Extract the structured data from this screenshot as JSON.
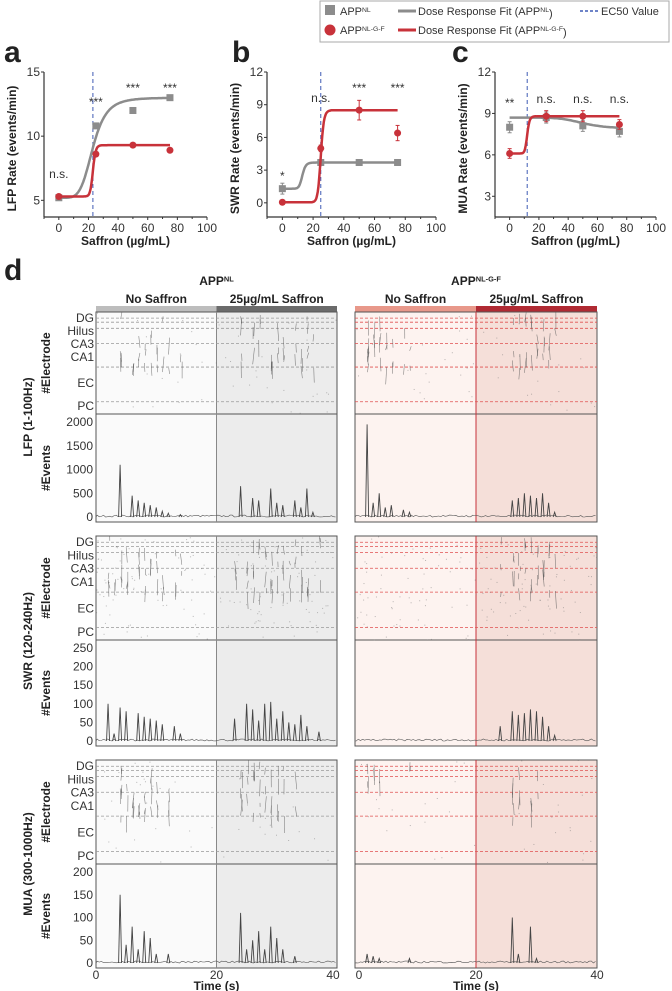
{
  "legend": {
    "items": [
      {
        "label": "APP",
        "sup": "NL",
        "marker": "square",
        "color": "#8c8c8c"
      },
      {
        "label": "APP",
        "sup": "NL-G-F",
        "marker": "circle",
        "color": "#c8323a"
      },
      {
        "label": "Dose Response Fit (APP",
        "sup": "NL",
        "suffix": ")",
        "marker": "line",
        "color": "#8c8c8c"
      },
      {
        "label": "Dose Response Fit (APP",
        "sup": "NL-G-F",
        "suffix": ")",
        "marker": "line",
        "color": "#c8323a"
      },
      {
        "label": "EC50 Value",
        "marker": "dashed",
        "color": "#3f5bb5"
      }
    ]
  },
  "chart_data": [
    {
      "panel": "a",
      "type": "scatter",
      "xlabel": "Saffron (µg/mL)",
      "ylabel": "LFP Rate (events/min)",
      "xlim": [
        -10,
        100
      ],
      "ylim": [
        3.7,
        15
      ],
      "xticks": [
        0,
        20,
        40,
        60,
        80,
        100
      ],
      "yticks": [
        5,
        10,
        15
      ],
      "ec50": 23,
      "series": [
        {
          "name": "APPNL",
          "x": [
            0,
            25,
            50,
            75
          ],
          "y": [
            5.2,
            10.8,
            12.0,
            13.0
          ],
          "fit": {
            "bottom": 5.2,
            "top": 13.0,
            "ec50": 23,
            "hill": 5
          }
        },
        {
          "name": "APPNL-G-F",
          "x": [
            0,
            25,
            50,
            75
          ],
          "y": [
            5.3,
            8.6,
            9.3,
            8.9
          ],
          "fit": {
            "bottom": 5.3,
            "top": 9.3,
            "ec50": 23,
            "hill": 25
          }
        }
      ],
      "significance": [
        {
          "x": 0,
          "label": "n.s."
        },
        {
          "x": 25,
          "label": "***"
        },
        {
          "x": 50,
          "label": "***"
        },
        {
          "x": 75,
          "label": "***"
        }
      ]
    },
    {
      "panel": "b",
      "type": "scatter",
      "xlabel": "Saffron (µg/mL)",
      "ylabel": "SWR Rate (events/min)",
      "xlim": [
        -10,
        100
      ],
      "ylim": [
        -1.3,
        12
      ],
      "xticks": [
        0,
        20,
        40,
        60,
        80,
        100
      ],
      "yticks": [
        0,
        3,
        6,
        9,
        12
      ],
      "ec50": 25,
      "series": [
        {
          "name": "APPNL",
          "x": [
            0,
            25,
            50,
            75
          ],
          "y": [
            1.3,
            3.7,
            3.7,
            3.7
          ],
          "err": [
            0.5,
            0.2,
            0.2,
            0.2
          ],
          "fit": {
            "bottom": 1.3,
            "top": 3.7,
            "ec50": 13,
            "hill": 12
          }
        },
        {
          "name": "APPNL-G-F",
          "x": [
            0,
            25,
            50,
            75
          ],
          "y": [
            0.05,
            5.0,
            8.5,
            6.4
          ],
          "err": [
            0.1,
            0.3,
            0.9,
            0.7
          ],
          "fit": {
            "bottom": 0.05,
            "top": 8.5,
            "ec50": 25,
            "hill": 25
          }
        }
      ],
      "significance": [
        {
          "x": 0,
          "label": "*"
        },
        {
          "x": 25,
          "label": "n.s."
        },
        {
          "x": 50,
          "label": "***"
        },
        {
          "x": 75,
          "label": "***"
        }
      ]
    },
    {
      "panel": "c",
      "type": "scatter",
      "xlabel": "Saffron (µg/mL)",
      "ylabel": "MUA Rate (events/min)",
      "xlim": [
        -10,
        100
      ],
      "ylim": [
        1.5,
        12
      ],
      "xticks": [
        0,
        20,
        40,
        60,
        80,
        100
      ],
      "yticks": [
        3,
        6,
        9,
        12
      ],
      "ec50": 12,
      "series": [
        {
          "name": "APPNL",
          "x": [
            0,
            25,
            50,
            75
          ],
          "y": [
            8.0,
            8.7,
            8.1,
            7.7
          ],
          "err": [
            0.4,
            0.4,
            0.4,
            0.4
          ]
        },
        {
          "name": "APPNL-G-F",
          "x": [
            0,
            25,
            50,
            75
          ],
          "y": [
            6.1,
            8.8,
            8.8,
            8.2
          ],
          "err": [
            0.35,
            0.4,
            0.4,
            0.35
          ],
          "fit": {
            "bottom": 6.1,
            "top": 8.8,
            "ec50": 12,
            "hill": 15
          }
        }
      ],
      "significance": [
        {
          "x": 0,
          "label": "**"
        },
        {
          "x": 25,
          "label": "n.s."
        },
        {
          "x": 50,
          "label": "n.s."
        },
        {
          "x": 75,
          "label": "n.s."
        }
      ]
    },
    {
      "panel": "d",
      "type": "bar",
      "groups": [
        {
          "title": "APP",
          "sup": "NL",
          "color": "#9a9a9a",
          "conditions": [
            "No Saffron",
            "25µg/mL Saffron"
          ],
          "bar_colors": [
            "#bdbdbd",
            "#6b6b6b"
          ],
          "bg_colors": [
            "#fafafa",
            "#ececec"
          ]
        },
        {
          "title": "APP",
          "sup": "NL-G-F",
          "color": "#c8323a",
          "conditions": [
            "No Saffron",
            "25µg/mL Saffron"
          ],
          "bar_colors": [
            "#e8988a",
            "#b02a33"
          ],
          "bg_colors": [
            "#fdf3f0",
            "#f5dfd9"
          ]
        }
      ],
      "regions": [
        "DG",
        "Hilus",
        "CA3",
        "CA1",
        "EC",
        "PC"
      ],
      "xlabel": "Time (s)",
      "xticks": [
        0,
        20,
        40
      ],
      "xlim": [
        0,
        40
      ],
      "raster_label": "#Electrode",
      "hist_label": "#Events",
      "bands": [
        {
          "name": "LFP (1-100Hz)",
          "ylim": [
            0,
            2000
          ],
          "yticks": [
            0,
            500,
            1000,
            1500,
            2000
          ],
          "peaks": [
            [
              [
                4,
                1100
              ],
              [
                6,
                450
              ],
              [
                7,
                350
              ],
              [
                8,
                300
              ],
              [
                9,
                250
              ],
              [
                10,
                200
              ],
              [
                11,
                120
              ],
              [
                12,
                80
              ],
              [
                14,
                50
              ],
              [
                24,
                650
              ],
              [
                26,
                400
              ],
              [
                27,
                350
              ],
              [
                29,
                600
              ],
              [
                30,
                300
              ],
              [
                31,
                250
              ],
              [
                33,
                350
              ],
              [
                34,
                200
              ],
              [
                35,
                600
              ],
              [
                36,
                100
              ]
            ],
            [
              [
                2,
                1950
              ],
              [
                3,
                300
              ],
              [
                4,
                500
              ],
              [
                5,
                200
              ],
              [
                6,
                250
              ],
              [
                8,
                150
              ],
              [
                9,
                100
              ],
              [
                26,
                350
              ],
              [
                27,
                400
              ],
              [
                28,
                500
              ],
              [
                29,
                450
              ],
              [
                30,
                400
              ],
              [
                31,
                500
              ],
              [
                32,
                300
              ],
              [
                33,
                100
              ]
            ]
          ]
        },
        {
          "name": "SWR (120-240Hz)",
          "ylim": [
            0,
            250
          ],
          "yticks": [
            0,
            50,
            100,
            150,
            200,
            250
          ],
          "peaks": [
            [
              [
                2,
                100
              ],
              [
                3,
                20
              ],
              [
                4,
                90
              ],
              [
                5,
                80
              ],
              [
                7,
                75
              ],
              [
                8,
                65
              ],
              [
                9,
                60
              ],
              [
                10,
                55
              ],
              [
                11,
                45
              ],
              [
                13,
                40
              ],
              [
                14,
                20
              ],
              [
                23,
                60
              ],
              [
                25,
                100
              ],
              [
                26,
                85
              ],
              [
                27,
                55
              ],
              [
                28,
                100
              ],
              [
                29,
                105
              ],
              [
                30,
                60
              ],
              [
                31,
                80
              ],
              [
                32,
                50
              ],
              [
                33,
                45
              ],
              [
                34,
                70
              ],
              [
                35,
                40
              ],
              [
                37,
                25
              ]
            ],
            [
              [
                24,
                40
              ],
              [
                26,
                80
              ],
              [
                27,
                70
              ],
              [
                28,
                75
              ],
              [
                29,
                85
              ],
              [
                30,
                80
              ],
              [
                31,
                65
              ],
              [
                32,
                40
              ],
              [
                33,
                15
              ]
            ]
          ]
        },
        {
          "name": "MUA (300-1000Hz)",
          "ylim": [
            0,
            200
          ],
          "yticks": [
            0,
            50,
            100,
            150,
            200
          ],
          "peaks": [
            [
              [
                4,
                150
              ],
              [
                5,
                40
              ],
              [
                6,
                80
              ],
              [
                7,
                30
              ],
              [
                8,
                70
              ],
              [
                9,
                55
              ],
              [
                10,
                20
              ],
              [
                12,
                20
              ],
              [
                24,
                110
              ],
              [
                25,
                30
              ],
              [
                26,
                50
              ],
              [
                27,
                70
              ],
              [
                28,
                30
              ],
              [
                29,
                80
              ],
              [
                30,
                55
              ],
              [
                31,
                30
              ],
              [
                33,
                15
              ]
            ],
            [
              [
                2,
                20
              ],
              [
                3,
                15
              ],
              [
                4,
                10
              ],
              [
                9,
                10
              ],
              [
                26,
                100
              ],
              [
                27,
                20
              ],
              [
                29,
                80
              ],
              [
                30,
                10
              ]
            ]
          ]
        }
      ]
    }
  ]
}
